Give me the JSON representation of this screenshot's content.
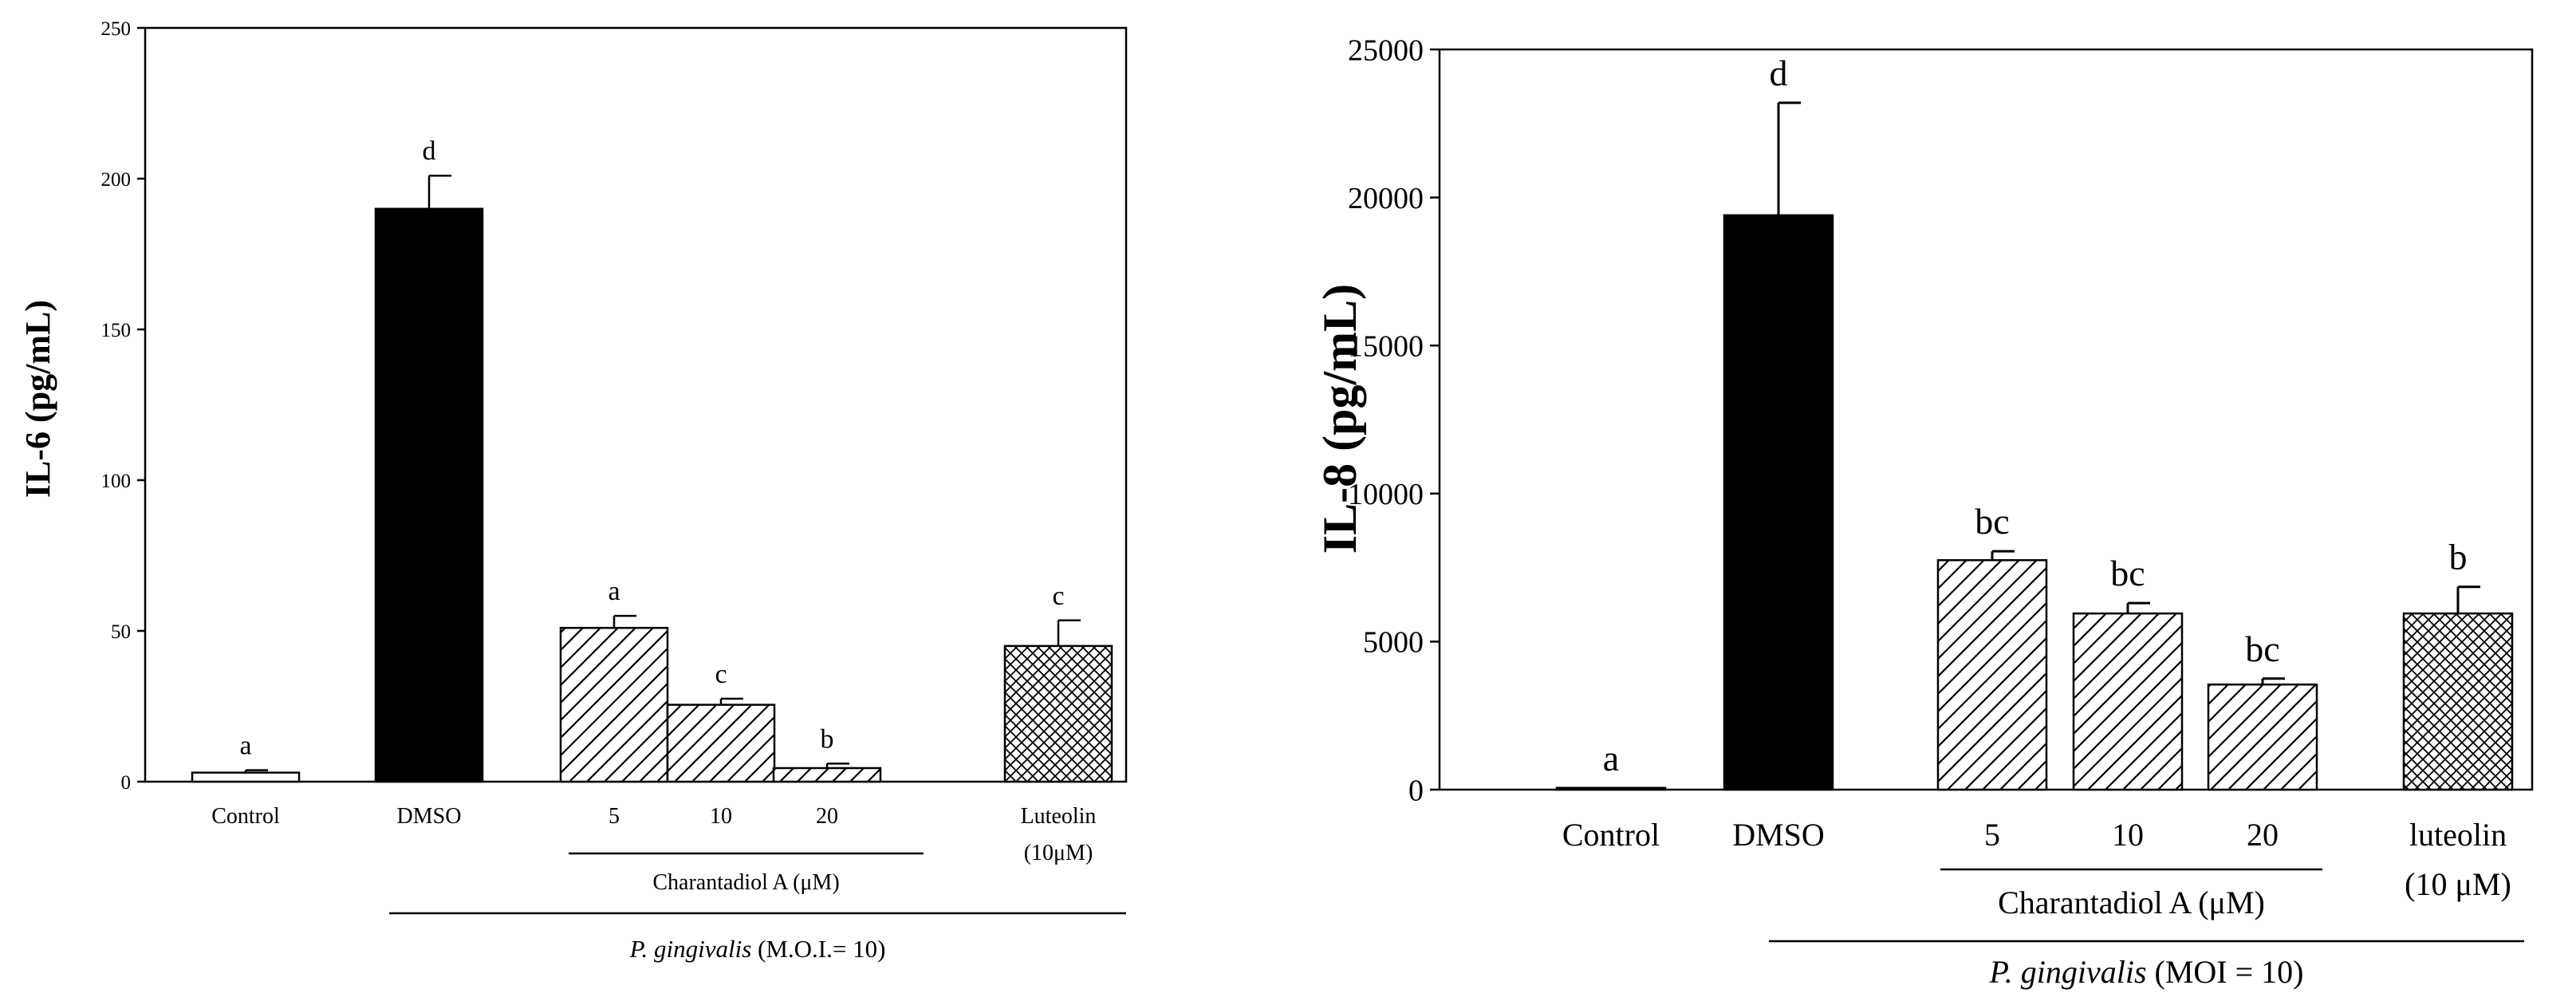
{
  "chart_data": [
    {
      "type": "bar",
      "ylabel": "IL-6 (pg/mL)",
      "ylim": [
        0,
        250
      ],
      "yticks": [
        0,
        50,
        100,
        150,
        200,
        250
      ],
      "categories": [
        "Control",
        "DMSO",
        "5",
        "10",
        "20",
        "Luteolin"
      ],
      "category_sublabels": [
        "",
        "",
        "",
        "",
        "",
        "(10μM)"
      ],
      "values": [
        3,
        190,
        51,
        25.5,
        4.5,
        45
      ],
      "errors": [
        0.8,
        11,
        4,
        2,
        1.5,
        8.5
      ],
      "letters": [
        "a",
        "d",
        "a",
        "c",
        "b",
        "c"
      ],
      "fills": [
        "none",
        "solid",
        "diagonal",
        "diagonal",
        "diagonal",
        "crosshatch"
      ],
      "group_labels": {
        "inner": "Charantadiol A (μM)",
        "outer_italic": "P. gingivalis",
        "outer_rest": " (M.O.I.= 10)"
      }
    },
    {
      "type": "bar",
      "ylabel": "IL-8 (pg/mL)",
      "ylim": [
        0,
        25000
      ],
      "yticks": [
        0,
        5000,
        10000,
        15000,
        20000,
        25000
      ],
      "categories": [
        "Control",
        "DMSO",
        "5",
        "10",
        "20",
        "luteolin"
      ],
      "category_sublabels": [
        "",
        "",
        "",
        "",
        "",
        "(10 μM)"
      ],
      "values": [
        60,
        19400,
        7750,
        5950,
        3550,
        5950
      ],
      "errors": [
        0,
        3800,
        300,
        350,
        200,
        900
      ],
      "letters": [
        "a",
        "d",
        "bc",
        "bc",
        "bc",
        "b"
      ],
      "fills": [
        "none",
        "solid",
        "diagonal",
        "diagonal",
        "diagonal",
        "crosshatch"
      ],
      "group_labels": {
        "inner": "Charantadiol A (μM)",
        "outer_italic": "P. gingivalis",
        "outer_rest": " (MOI = 10)"
      }
    }
  ]
}
